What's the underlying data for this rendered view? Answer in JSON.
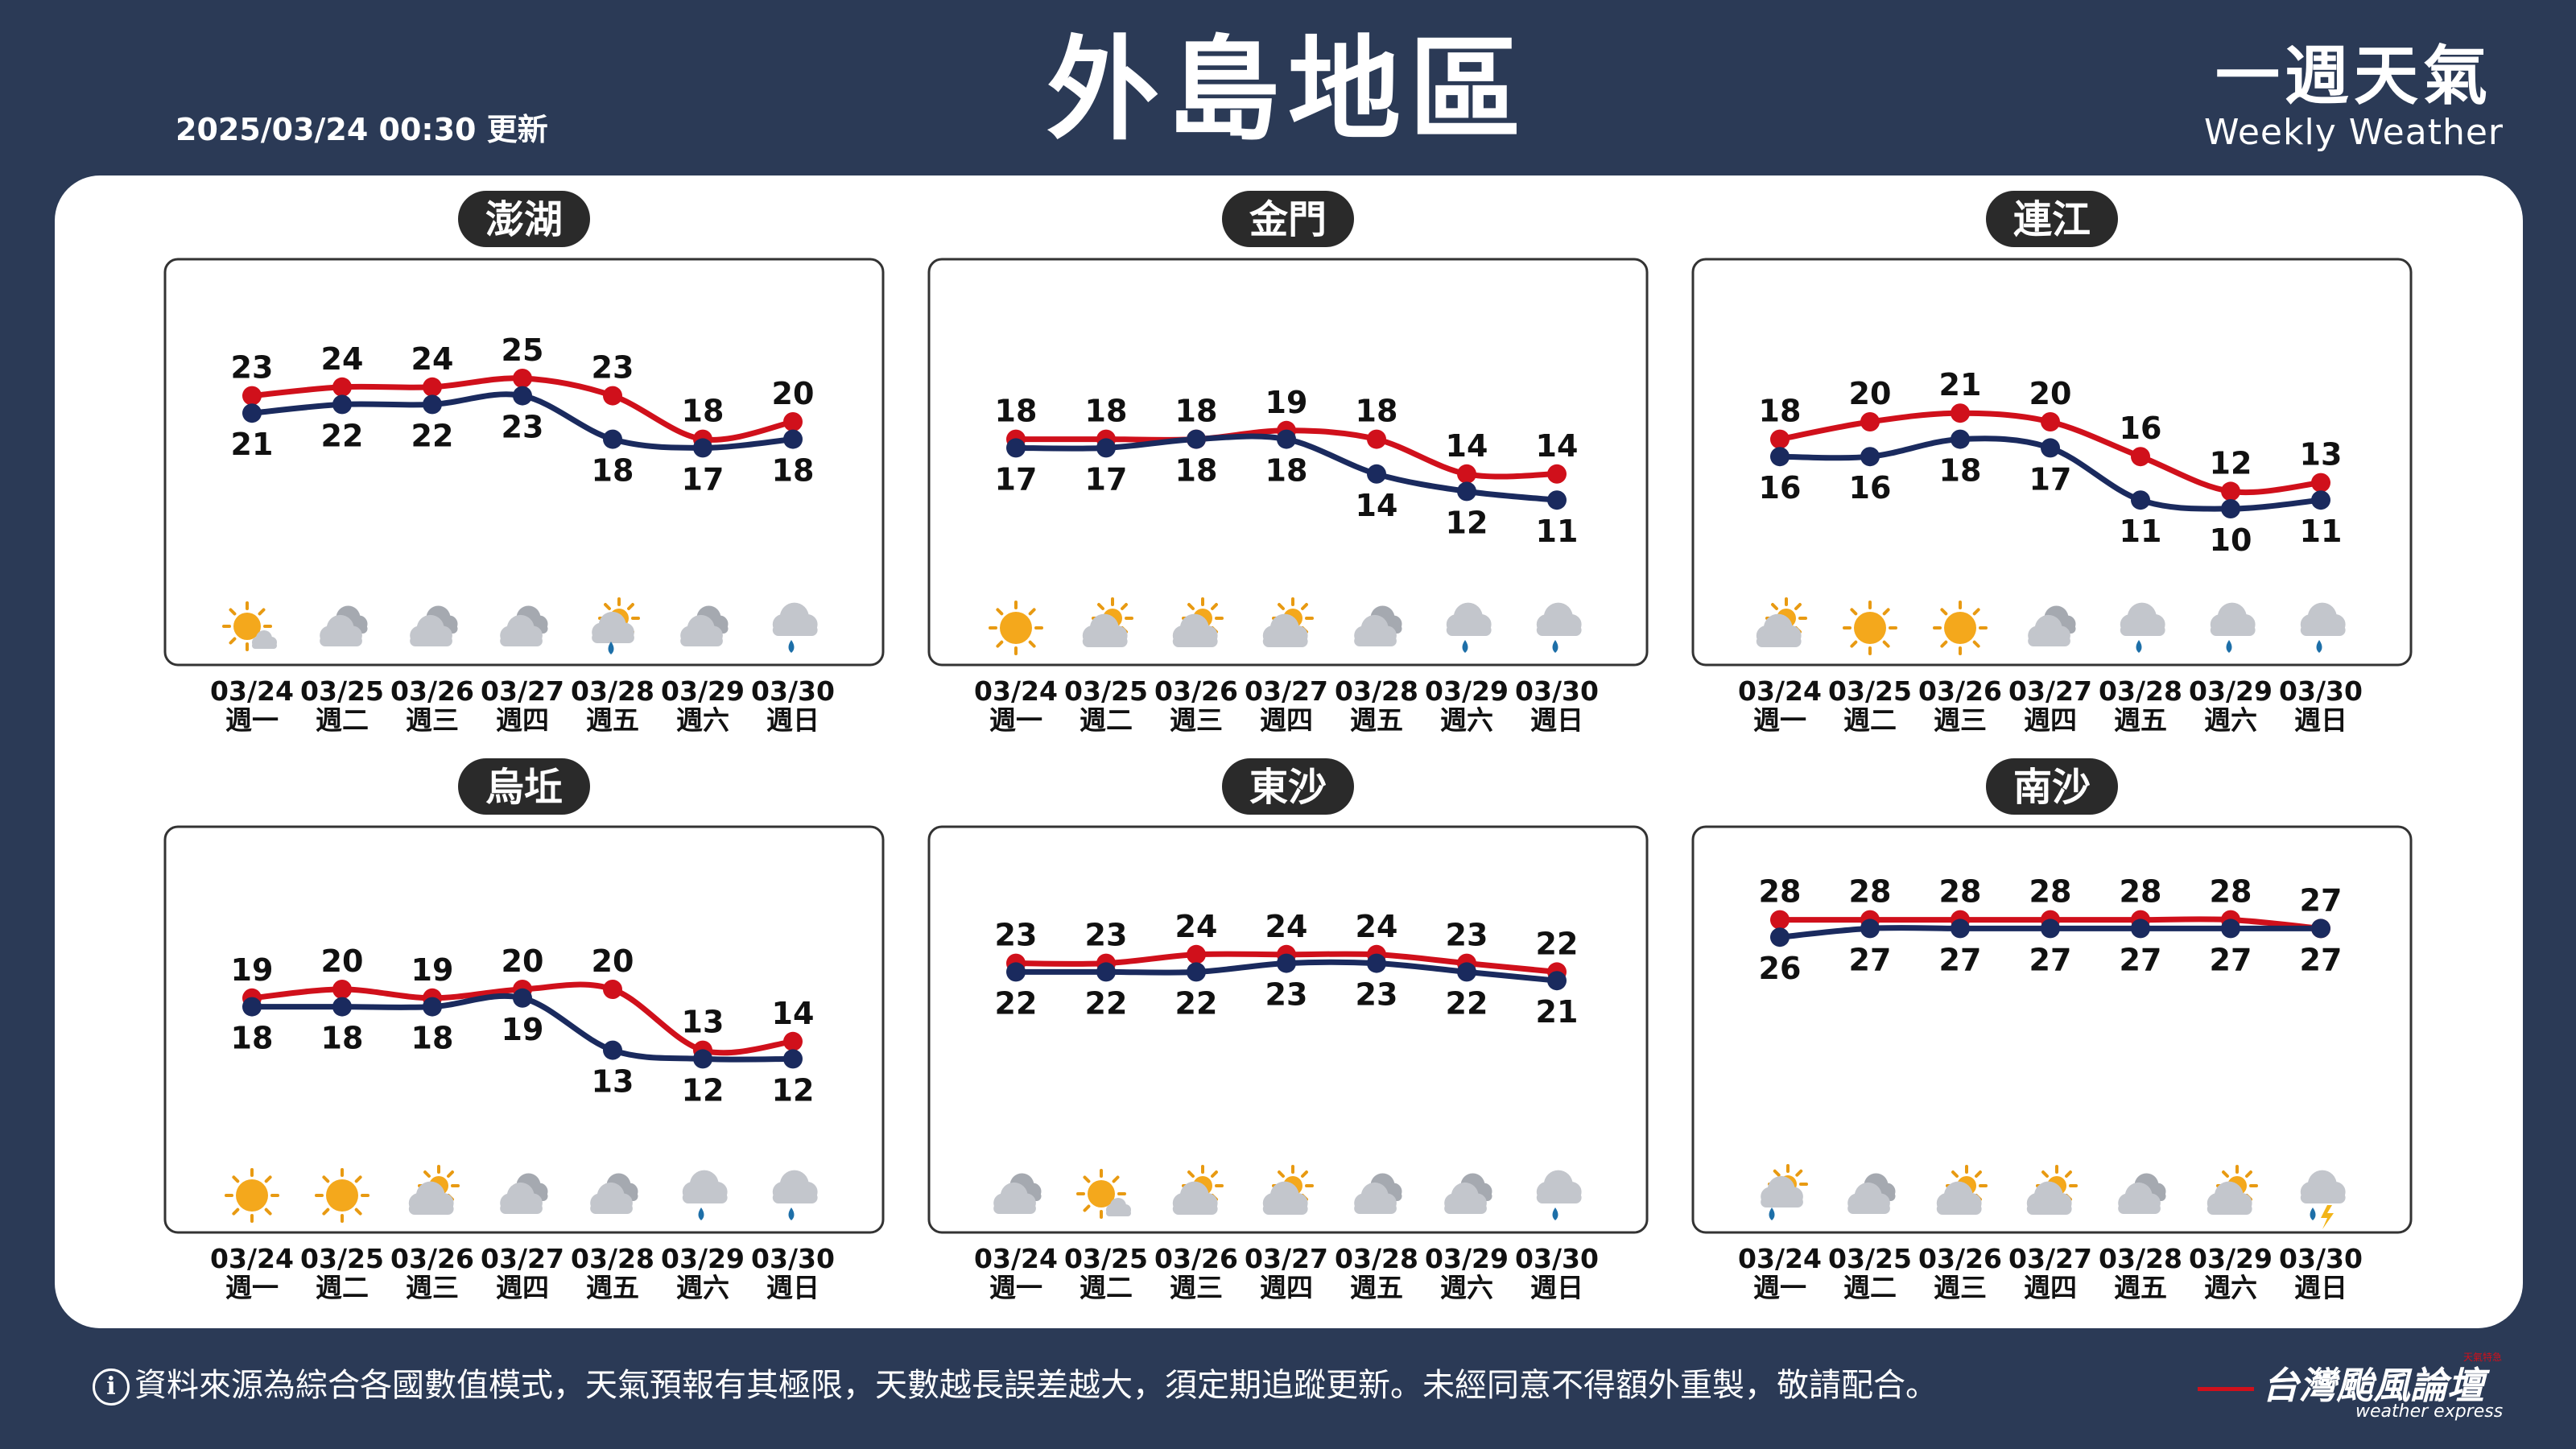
{
  "header": {
    "title": "外島地區",
    "updated": "2025/03/24 00:30 更新",
    "brand_cn": "一週天氣",
    "brand_en": "Weekly Weather"
  },
  "footer": {
    "info_icon": "i",
    "disclaimer": "資料來源為綜合各國數值模式，天氣預報有其極限，天數越長誤差越大，須定期追蹤更新。未經同意不得額外重製，敬請配合。",
    "logo_cn": "台灣颱風論壇",
    "logo_en": "weather express",
    "logo_tag": "天氣特急"
  },
  "colors": {
    "high": "#d0101b",
    "low": "#1a2a5e",
    "pill": "#2a2a2a",
    "background": "#2b3a56"
  },
  "chart_data": [
    {
      "type": "line",
      "region": "澎湖",
      "dates": [
        "03/24",
        "03/25",
        "03/26",
        "03/27",
        "03/28",
        "03/29",
        "03/30"
      ],
      "weekdays": [
        "週一",
        "週二",
        "週三",
        "週四",
        "週五",
        "週六",
        "週日"
      ],
      "series": [
        {
          "values": [
            23,
            24,
            24,
            25,
            23,
            18,
            20
          ]
        },
        {
          "values": [
            21,
            22,
            22,
            23,
            18,
            17,
            18
          ]
        }
      ],
      "icons": [
        "sun-cloud-icon",
        "cloud-icon",
        "cloud-icon",
        "cloud-icon",
        "sun-cloud-rain-icon",
        "cloud-icon",
        "rain-icon"
      ]
    },
    {
      "type": "line",
      "region": "金門",
      "dates": [
        "03/24",
        "03/25",
        "03/26",
        "03/27",
        "03/28",
        "03/29",
        "03/30"
      ],
      "weekdays": [
        "週一",
        "週二",
        "週三",
        "週四",
        "週五",
        "週六",
        "週日"
      ],
      "series": [
        {
          "values": [
            18,
            18,
            18,
            19,
            18,
            14,
            14
          ]
        },
        {
          "values": [
            17,
            17,
            18,
            18,
            14,
            12,
            11
          ]
        }
      ],
      "icons": [
        "sun-icon",
        "cloud-sun-icon",
        "cloud-sun-icon",
        "cloud-sun-icon",
        "cloud-icon",
        "rain-icon",
        "rain-icon"
      ]
    },
    {
      "type": "line",
      "region": "連江",
      "dates": [
        "03/24",
        "03/25",
        "03/26",
        "03/27",
        "03/28",
        "03/29",
        "03/30"
      ],
      "weekdays": [
        "週一",
        "週二",
        "週三",
        "週四",
        "週五",
        "週六",
        "週日"
      ],
      "series": [
        {
          "values": [
            18,
            20,
            21,
            20,
            16,
            12,
            13
          ]
        },
        {
          "values": [
            16,
            16,
            18,
            17,
            11,
            10,
            11
          ]
        }
      ],
      "icons": [
        "cloud-sun-icon",
        "sun-icon",
        "sun-icon",
        "cloud-icon",
        "rain-icon",
        "rain-icon",
        "rain-icon"
      ]
    },
    {
      "type": "line",
      "region": "烏坵",
      "dates": [
        "03/24",
        "03/25",
        "03/26",
        "03/27",
        "03/28",
        "03/29",
        "03/30"
      ],
      "weekdays": [
        "週一",
        "週二",
        "週三",
        "週四",
        "週五",
        "週六",
        "週日"
      ],
      "series": [
        {
          "values": [
            19,
            20,
            19,
            20,
            20,
            13,
            14
          ]
        },
        {
          "values": [
            18,
            18,
            18,
            19,
            13,
            12,
            12
          ]
        }
      ],
      "icons": [
        "sun-icon",
        "sun-icon",
        "cloud-sun-icon",
        "cloud-icon",
        "cloud-icon",
        "rain-icon",
        "rain-icon"
      ]
    },
    {
      "type": "line",
      "region": "東沙",
      "dates": [
        "03/24",
        "03/25",
        "03/26",
        "03/27",
        "03/28",
        "03/29",
        "03/30"
      ],
      "weekdays": [
        "週一",
        "週二",
        "週三",
        "週四",
        "週五",
        "週六",
        "週日"
      ],
      "series": [
        {
          "values": [
            23,
            23,
            24,
            24,
            24,
            23,
            22
          ]
        },
        {
          "values": [
            22,
            22,
            22,
            23,
            23,
            22,
            21
          ]
        }
      ],
      "icons": [
        "cloud-icon",
        "sun-cloud-icon",
        "cloud-sun-icon",
        "cloud-sun-icon",
        "cloud-icon",
        "cloud-icon",
        "rain-icon"
      ]
    },
    {
      "type": "line",
      "region": "南沙",
      "dates": [
        "03/24",
        "03/25",
        "03/26",
        "03/27",
        "03/28",
        "03/29",
        "03/30"
      ],
      "weekdays": [
        "週一",
        "週二",
        "週三",
        "週四",
        "週五",
        "週六",
        "週日"
      ],
      "series": [
        {
          "values": [
            28,
            28,
            28,
            28,
            28,
            28,
            27
          ]
        },
        {
          "values": [
            26,
            27,
            27,
            27,
            27,
            27,
            27
          ]
        }
      ],
      "icons": [
        "cloud-sun-rain-icon",
        "cloud-icon",
        "cloud-sun-icon",
        "cloud-sun-icon",
        "cloud-icon",
        "cloud-sun-icon",
        "thunder-icon"
      ]
    }
  ]
}
